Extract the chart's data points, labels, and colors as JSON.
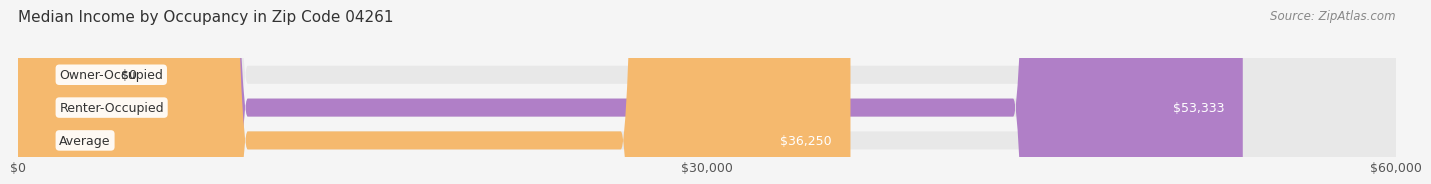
{
  "title": "Median Income by Occupancy in Zip Code 04261",
  "source": "Source: ZipAtlas.com",
  "categories": [
    "Owner-Occupied",
    "Renter-Occupied",
    "Average"
  ],
  "values": [
    0,
    53333,
    36250
  ],
  "value_labels": [
    "$0",
    "$53,333",
    "$36,250"
  ],
  "bar_colors": [
    "#6ecfcf",
    "#b07fc7",
    "#f5b96e"
  ],
  "label_colors": [
    "#444444",
    "#ffffff",
    "#ffffff"
  ],
  "xlim": [
    0,
    60000
  ],
  "xticks": [
    0,
    30000,
    60000
  ],
  "xtick_labels": [
    "$0",
    "$30,000",
    "$60,000"
  ],
  "bar_height": 0.55,
  "background_color": "#f5f5f5",
  "bar_bg_color": "#e8e8e8",
  "title_fontsize": 11,
  "source_fontsize": 8.5,
  "tick_fontsize": 9,
  "bar_label_fontsize": 9,
  "category_fontsize": 9
}
